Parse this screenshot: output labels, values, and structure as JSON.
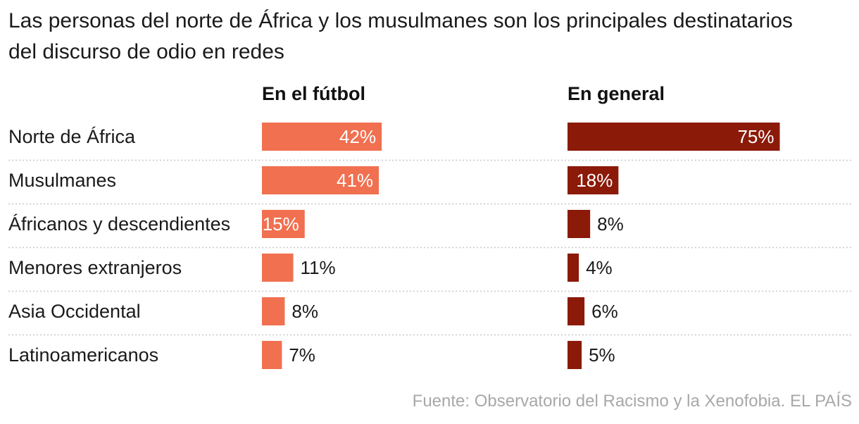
{
  "title": "Las personas del norte de África y los musulmanes son los principales destinatarios del discurso de odio en redes",
  "source": "Fuente: Observatorio del Racismo y la Xenofobia. EL PAÍS",
  "colors": {
    "futbol": "#f07050",
    "general": "#8b1a08",
    "divider": "#c8c8c8",
    "label_inside": "#ffffff",
    "label_outside": "#1a1a1a"
  },
  "chart_data": {
    "type": "bar",
    "orientation": "horizontal",
    "title": "Las personas del norte de África y los musulmanes son los principales destinatarios del discurso de odio en redes",
    "categories": [
      "Norte de África",
      "Musulmanes",
      "Áfricanos y descendientes",
      "Menores extranjeros",
      "Asia Occidental",
      "Latinoamericanos"
    ],
    "unit": "%",
    "series": [
      {
        "name": "En el fútbol",
        "values": [
          42,
          41,
          15,
          11,
          8,
          7
        ]
      },
      {
        "name": "En general",
        "values": [
          75,
          18,
          8,
          4,
          6,
          5
        ]
      }
    ],
    "xlim": [
      0,
      100
    ],
    "grid": false,
    "legend": "panel titles"
  }
}
